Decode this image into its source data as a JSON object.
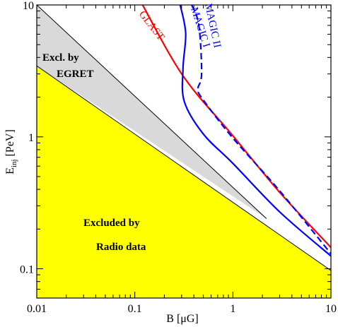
{
  "chart_data": {
    "type": "area",
    "xscale": "log",
    "yscale": "log",
    "xlim": [
      0.01,
      10
    ],
    "ylim": [
      0.06,
      10
    ],
    "xlabel": "B  [μG]",
    "ylabel": "E",
    "ylabel_sub": "inj",
    "ylabel_unit": " [PeV]",
    "xticks": [
      {
        "value": 0.01,
        "label": "0.01"
      },
      {
        "value": 0.1,
        "label": "0.1"
      },
      {
        "value": 1,
        "label": "1"
      },
      {
        "value": 10,
        "label": "10"
      }
    ],
    "yticks": [
      {
        "value": 0.1,
        "label": "0.1"
      },
      {
        "value": 1,
        "label": "1"
      },
      {
        "value": 10,
        "label": "10"
      }
    ],
    "regions": [
      {
        "name": "Excluded by EGRET",
        "label_lines": [
          "Excl. by",
          "EGRET"
        ],
        "color": "#d9d9d9",
        "upper_boundary": [
          [
            0.01,
            10
          ],
          [
            2.2,
            0.24
          ]
        ],
        "lower_boundary": [
          [
            0.01,
            3.45
          ],
          [
            2.2,
            0.24
          ]
        ]
      },
      {
        "name": "Excluded by Radio data",
        "label_lines": [
          "Excluded by",
          "Radio data"
        ],
        "color": "#ffff00",
        "upper_boundary": [
          [
            0.01,
            3.45
          ],
          [
            10,
            0.097
          ]
        ]
      }
    ],
    "series": [
      {
        "name": "GLAST",
        "color": "#ff0000",
        "dash": "solid",
        "points": [
          [
            0.12,
            10
          ],
          [
            0.31,
            2.9
          ],
          [
            1,
            1.02
          ],
          [
            3,
            0.38
          ],
          [
            10,
            0.145
          ]
        ]
      },
      {
        "name": "MAGIC I",
        "color": "#0000ff",
        "dash": "solid",
        "points": [
          [
            0.29,
            10
          ],
          [
            0.33,
            6.1
          ],
          [
            0.31,
            3.3
          ],
          [
            0.32,
            1.85
          ],
          [
            0.5,
            1.05
          ],
          [
            1,
            0.63
          ],
          [
            3,
            0.27
          ],
          [
            10,
            0.125
          ]
        ]
      },
      {
        "name": "MAGIC II",
        "color": "#0000ff",
        "dash": "dashed",
        "points": [
          [
            0.38,
            10
          ],
          [
            0.45,
            7.0
          ],
          [
            0.48,
            3.0
          ],
          [
            0.44,
            2.3
          ],
          [
            0.5,
            1.9
          ],
          [
            1,
            0.98
          ],
          [
            3,
            0.39
          ],
          [
            10,
            0.13
          ]
        ]
      }
    ]
  }
}
